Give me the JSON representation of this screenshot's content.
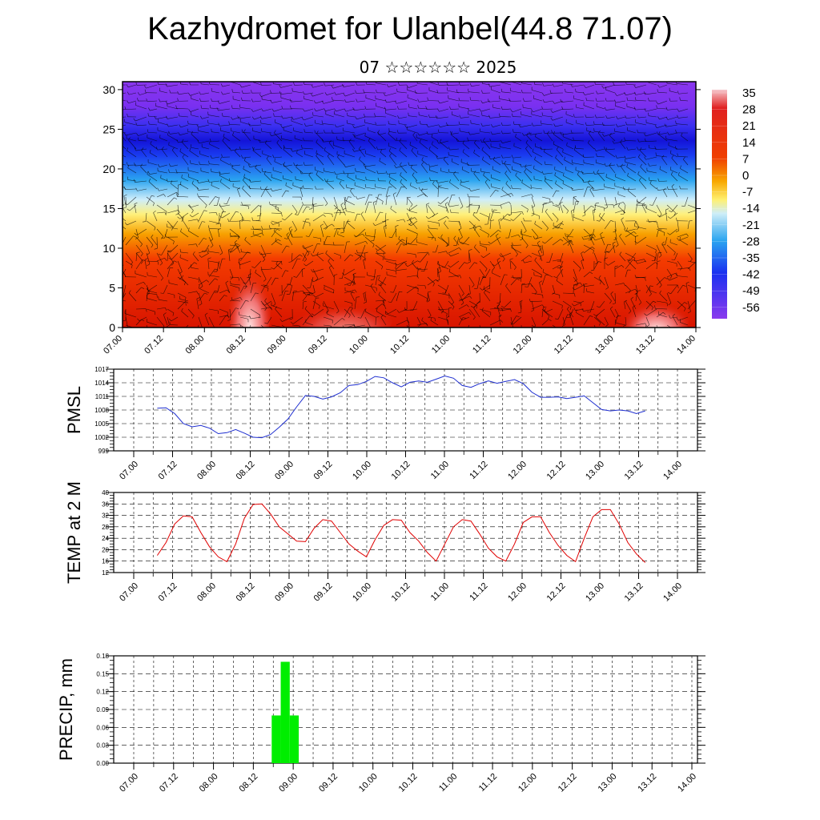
{
  "header": {
    "title": "Kazhydromet for Ulanbel(44.8 71.07)",
    "subtitle": "07 ☆☆☆☆☆☆ 2025"
  },
  "colors": {
    "pmsl_line": "#1f2fd0",
    "temp_line": "#e00000",
    "precip_bar": "#00ee00",
    "grid": "#000000"
  },
  "chart_data": [
    {
      "id": "cross_section",
      "type": "heatmap",
      "description_note": "",
      "x_ticks": [
        "07.00",
        "07.12",
        "08.00",
        "08.12",
        "09.00",
        "09.12",
        "10.00",
        "10.12",
        "11.00",
        "11.12",
        "12.00",
        "12.12",
        "13.00",
        "13.12",
        "14.00"
      ],
      "y_ticks": [
        0,
        5,
        10,
        15,
        20,
        25,
        30
      ],
      "ylim": [
        0,
        31
      ],
      "colorbar_labels": [
        "35",
        "28",
        "21",
        "14",
        "7",
        "0",
        "-7",
        "-14",
        "-21",
        "-28",
        "-35",
        "-42",
        "-49",
        "-56"
      ]
    },
    {
      "id": "pmsl",
      "type": "line",
      "ylabel": "PMSL",
      "y_ticks": [
        999,
        1002,
        1005,
        1008,
        1011,
        1014,
        1017
      ],
      "ylim": [
        999,
        1017
      ],
      "x_ticks": [
        "07.00",
        "07.12",
        "08.00",
        "08.12",
        "09.00",
        "09.12",
        "10.00",
        "10.12",
        "11.00",
        "11.12",
        "12.00",
        "12.12",
        "13.00",
        "13.12",
        "14.00"
      ],
      "x": [
        0,
        3,
        6,
        9,
        12,
        15,
        18,
        21,
        24,
        27,
        30,
        33,
        36,
        39,
        42,
        45,
        48,
        51,
        54,
        57,
        60,
        63,
        66,
        69,
        72,
        75,
        78,
        81,
        84,
        87,
        90,
        93,
        96,
        99,
        102,
        105,
        108,
        111,
        114,
        117,
        120,
        123,
        126,
        129,
        132,
        135,
        138,
        141,
        144,
        147,
        150,
        153,
        156,
        159,
        162,
        165,
        168
      ],
      "values": [
        1008.4,
        1008.5,
        1007.2,
        1005.0,
        1004.3,
        1004.6,
        1004.0,
        1002.8,
        1003.0,
        1003.7,
        1002.9,
        1002.0,
        1001.9,
        1002.6,
        1004.2,
        1006.0,
        1008.7,
        1011.2,
        1011.0,
        1010.4,
        1010.9,
        1011.8,
        1013.4,
        1013.6,
        1014.3,
        1015.4,
        1015.1,
        1014.0,
        1013.1,
        1014.1,
        1014.4,
        1014.1,
        1014.8,
        1015.5,
        1015.0,
        1013.4,
        1013.0,
        1013.8,
        1014.4,
        1013.9,
        1014.3,
        1014.7,
        1013.8,
        1011.9,
        1010.8,
        1010.8,
        1010.9,
        1010.5,
        1010.8,
        1011.1,
        1009.6,
        1008.1,
        1007.8,
        1008.0,
        1007.8,
        1007.2,
        1007.8
      ]
    },
    {
      "id": "temp2m",
      "type": "line",
      "ylabel": "TEMP at 2 M",
      "y_ticks": [
        12,
        16,
        20,
        24,
        28,
        32,
        36,
        40
      ],
      "ylim": [
        12,
        40
      ],
      "x_ticks": [
        "07.00",
        "07.12",
        "08.00",
        "08.12",
        "09.00",
        "09.12",
        "10.00",
        "10.12",
        "11.00",
        "11.12",
        "12.00",
        "12.12",
        "13.00",
        "13.12",
        "14.00"
      ],
      "x": [
        0,
        3,
        6,
        9,
        12,
        15,
        18,
        21,
        24,
        27,
        30,
        33,
        36,
        39,
        42,
        45,
        48,
        51,
        54,
        57,
        60,
        63,
        66,
        69,
        72,
        75,
        78,
        81,
        84,
        87,
        90,
        93,
        96,
        99,
        102,
        105,
        108,
        111,
        114,
        117,
        120,
        123,
        126,
        129,
        132,
        135,
        138,
        141,
        144,
        147,
        150,
        153,
        156,
        159,
        162,
        165,
        168
      ],
      "values": [
        18.0,
        22.5,
        29.0,
        31.8,
        31.5,
        26.0,
        21.0,
        17.5,
        15.8,
        22.0,
        31.0,
        35.8,
        36.0,
        32.5,
        28.0,
        25.5,
        23.0,
        22.8,
        27.5,
        30.5,
        30.0,
        26.0,
        22.0,
        19.5,
        17.5,
        23.5,
        28.5,
        30.5,
        30.3,
        26.0,
        23.0,
        19.0,
        16.0,
        22.0,
        28.0,
        30.5,
        30.0,
        25.5,
        20.5,
        17.5,
        16.0,
        22.0,
        29.5,
        31.5,
        31.5,
        26.0,
        21.5,
        18.0,
        15.8,
        24.0,
        31.5,
        34.0,
        34.0,
        29.0,
        22.5,
        18.5,
        15.5
      ]
    },
    {
      "id": "precip",
      "type": "bar",
      "ylabel": "PRECIP, mm",
      "y_ticks": [
        "0.00",
        "0.03",
        "0.06",
        "0.09",
        "0.12",
        "0.15",
        "0.18"
      ],
      "ylim": [
        0,
        0.18
      ],
      "x_ticks": [
        "07.00",
        "07.12",
        "08.00",
        "08.12",
        "09.00",
        "09.12",
        "10.00",
        "10.12",
        "11.00",
        "11.12",
        "12.00",
        "12.12",
        "13.00",
        "13.12",
        "14.00"
      ],
      "bars": [
        {
          "x_start": 41.5,
          "x_end": 44.5,
          "value": 0.08
        },
        {
          "x_start": 44.5,
          "x_end": 47.5,
          "value": 0.17
        },
        {
          "x_start": 47.5,
          "x_end": 50.5,
          "value": 0.08
        }
      ]
    }
  ]
}
